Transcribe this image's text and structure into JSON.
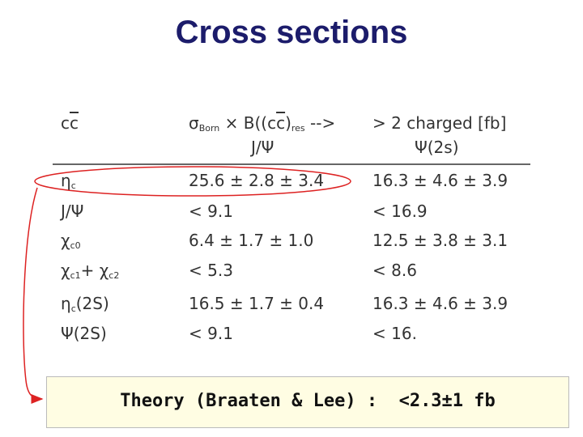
{
  "title": "Cross sections",
  "table": {
    "header": [
      [
        [
          {
            "text": "c"
          },
          {
            "text": "c",
            "overline": true
          }
        ]
      ],
      [
        [
          {
            "text": "σ",
            "sub": "Born"
          },
          {
            "text": " × B((c"
          },
          {
            "text": "c",
            "overline": true
          },
          {
            "text": ")",
            "sub": "res"
          },
          {
            "text": " -->"
          }
        ],
        [
          {
            "text": "J/Ψ"
          }
        ]
      ],
      [
        [
          {
            "text": "> 2 charged [fb]"
          }
        ],
        [
          {
            "text": "Ψ(2s)"
          }
        ]
      ]
    ],
    "rows": [
      {
        "label": [
          {
            "text": "η",
            "sub": "c"
          }
        ],
        "cells": [
          "25.6 ± 2.8 ± 3.4",
          "16.3 ± 4.6 ± 3.9"
        ]
      },
      {
        "label": [
          {
            "text": "J/Ψ"
          }
        ],
        "cells": [
          "< 9.1",
          "< 16.9"
        ]
      },
      {
        "label": [
          {
            "text": "χ",
            "sub": "c0"
          }
        ],
        "cells": [
          "6.4 ± 1.7 ± 1.0",
          "12.5 ± 3.8 ± 3.1"
        ]
      },
      {
        "label": [
          {
            "text": "χ",
            "sub": "c1"
          },
          {
            "text": "+ χ",
            "sub": "c2"
          }
        ],
        "cells": [
          "< 5.3",
          "< 8.6"
        ]
      },
      {
        "label": [
          {
            "text": "η",
            "sub": "c"
          },
          {
            "text": "(2S)"
          }
        ],
        "cells": [
          "16.5 ± 1.7 ± 0.4",
          "16.3 ± 4.6 ± 3.9"
        ]
      },
      {
        "label": [
          {
            "text": "Ψ(2S)"
          }
        ],
        "cells": [
          "< 9.1",
          "< 16."
        ]
      }
    ]
  },
  "footer": "Theory (Braaten & Lee) :  <2.3±1 fb"
}
